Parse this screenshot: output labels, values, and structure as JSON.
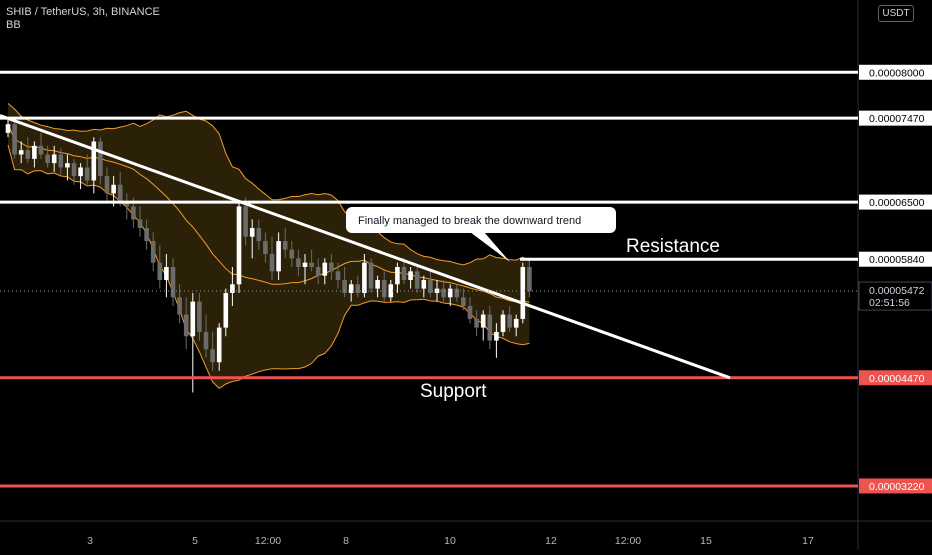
{
  "header": {
    "symbol_line": "SHIB / TetherUS, 3h, BINANCE",
    "indicator": "BB",
    "currency": "USDT"
  },
  "colors": {
    "background": "#000000",
    "up_candle": "#ffffff",
    "down_candle": "#6b6b6b",
    "band_line": "#f59b27",
    "band_fill": "#2a2108",
    "white_line": "#ffffff",
    "red_line": "#ef5350",
    "axis_text": "#b2b5be"
  },
  "chart_data": {
    "type": "candlestick",
    "ylim": [
      2.8e-06,
      8.8e-06
    ],
    "y_ticks": [
      "0.00003000",
      "0.00003500",
      "0.00004000",
      "0.00004500",
      "0.00005000",
      "0.00005500",
      "0.00006000",
      "0.00006500",
      "0.00007000",
      "0.00007500",
      "0.00008000",
      "0.00008500"
    ],
    "x_ticks": [
      "3",
      "5",
      "12:00",
      "8",
      "10",
      "12",
      "12:00",
      "15",
      "17"
    ],
    "price_levels": [
      {
        "value": 8e-06,
        "label": "0.00008000",
        "color": "white"
      },
      {
        "value": 7.47e-06,
        "label": "0.00007470",
        "color": "white"
      },
      {
        "value": 6.5e-06,
        "label": "0.00006500",
        "color": "white"
      },
      {
        "value": 5.84e-06,
        "label": "0.00005840",
        "color": "white"
      },
      {
        "value": 4.47e-06,
        "label": "0.00004470",
        "color": "red"
      },
      {
        "value": 3.22e-06,
        "label": "0.00003220",
        "color": "red"
      }
    ],
    "current_price": {
      "label": "0.00005472",
      "countdown": "02:51:56",
      "value": 5.472e-06
    },
    "annotations": {
      "callout": "Finally managed to break the downward trend",
      "resistance": "Resistance",
      "support": "Support"
    },
    "candles_ohlc": [
      [
        7.3,
        7.45,
        7.25,
        7.4
      ],
      [
        7.4,
        7.48,
        7.0,
        7.05
      ],
      [
        7.05,
        7.2,
        6.95,
        7.1
      ],
      [
        7.1,
        7.25,
        6.95,
        7.0
      ],
      [
        7.0,
        7.2,
        6.9,
        7.15
      ],
      [
        7.15,
        7.3,
        7.0,
        7.05
      ],
      [
        7.05,
        7.15,
        6.9,
        6.95
      ],
      [
        6.95,
        7.15,
        6.85,
        7.05
      ],
      [
        7.05,
        7.12,
        6.8,
        6.9
      ],
      [
        6.9,
        7.05,
        6.75,
        6.95
      ],
      [
        6.95,
        7.0,
        6.7,
        6.8
      ],
      [
        6.8,
        6.95,
        6.65,
        6.9
      ],
      [
        6.9,
        7.05,
        6.7,
        6.75
      ],
      [
        6.75,
        7.25,
        6.6,
        7.2
      ],
      [
        7.2,
        7.25,
        6.7,
        6.8
      ],
      [
        6.8,
        6.9,
        6.5,
        6.6
      ],
      [
        6.6,
        6.8,
        6.45,
        6.7
      ],
      [
        6.7,
        6.85,
        6.45,
        6.5
      ],
      [
        6.5,
        6.6,
        6.3,
        6.45
      ],
      [
        6.45,
        6.55,
        6.2,
        6.3
      ],
      [
        6.3,
        6.45,
        6.1,
        6.2
      ],
      [
        6.2,
        6.3,
        5.95,
        6.05
      ],
      [
        6.05,
        6.15,
        5.7,
        5.8
      ],
      [
        5.8,
        6.0,
        5.5,
        5.6
      ],
      [
        5.6,
        5.9,
        5.4,
        5.75
      ],
      [
        5.75,
        5.85,
        5.3,
        5.4
      ],
      [
        5.4,
        5.55,
        5.1,
        5.2
      ],
      [
        5.2,
        5.4,
        4.8,
        4.95
      ],
      [
        4.95,
        5.45,
        4.3,
        5.35
      ],
      [
        5.35,
        5.45,
        4.9,
        5.0
      ],
      [
        5.0,
        5.2,
        4.7,
        4.8
      ],
      [
        4.8,
        5.0,
        4.55,
        4.65
      ],
      [
        4.65,
        5.1,
        4.55,
        5.05
      ],
      [
        5.05,
        5.5,
        4.95,
        5.45
      ],
      [
        5.45,
        5.75,
        5.3,
        5.55
      ],
      [
        5.55,
        6.5,
        5.45,
        6.45
      ],
      [
        6.45,
        6.55,
        6.0,
        6.1
      ],
      [
        6.1,
        6.3,
        5.85,
        6.2
      ],
      [
        6.2,
        6.3,
        5.95,
        6.05
      ],
      [
        6.05,
        6.15,
        5.8,
        5.9
      ],
      [
        5.9,
        6.1,
        5.6,
        5.7
      ],
      [
        5.7,
        6.15,
        5.6,
        6.05
      ],
      [
        6.05,
        6.2,
        5.85,
        5.95
      ],
      [
        5.95,
        6.05,
        5.75,
        5.85
      ],
      [
        5.85,
        5.95,
        5.65,
        5.75
      ],
      [
        5.75,
        5.9,
        5.55,
        5.8
      ],
      [
        5.8,
        5.95,
        5.7,
        5.75
      ],
      [
        5.75,
        5.85,
        5.55,
        5.65
      ],
      [
        5.65,
        5.85,
        5.55,
        5.8
      ],
      [
        5.8,
        5.9,
        5.6,
        5.7
      ],
      [
        5.7,
        5.8,
        5.5,
        5.6
      ],
      [
        5.6,
        5.75,
        5.4,
        5.45
      ],
      [
        5.45,
        5.6,
        5.35,
        5.55
      ],
      [
        5.55,
        5.65,
        5.4,
        5.45
      ],
      [
        5.45,
        5.9,
        5.4,
        5.8
      ],
      [
        5.8,
        5.85,
        5.45,
        5.5
      ],
      [
        5.5,
        5.65,
        5.4,
        5.6
      ],
      [
        5.6,
        5.7,
        5.35,
        5.4
      ],
      [
        5.4,
        5.6,
        5.35,
        5.55
      ],
      [
        5.55,
        5.8,
        5.45,
        5.75
      ],
      [
        5.75,
        5.85,
        5.55,
        5.6
      ],
      [
        5.6,
        5.75,
        5.5,
        5.7
      ],
      [
        5.7,
        5.75,
        5.45,
        5.5
      ],
      [
        5.5,
        5.65,
        5.4,
        5.6
      ],
      [
        5.6,
        5.7,
        5.4,
        5.45
      ],
      [
        5.45,
        5.6,
        5.35,
        5.5
      ],
      [
        5.5,
        5.6,
        5.35,
        5.4
      ],
      [
        5.4,
        5.55,
        5.3,
        5.5
      ],
      [
        5.5,
        5.55,
        5.35,
        5.4
      ],
      [
        5.4,
        5.5,
        5.25,
        5.3
      ],
      [
        5.3,
        5.4,
        5.1,
        5.15
      ],
      [
        5.15,
        5.25,
        4.95,
        5.05
      ],
      [
        5.05,
        5.25,
        4.9,
        5.2
      ],
      [
        5.2,
        5.3,
        4.8,
        4.9
      ],
      [
        4.9,
        5.1,
        4.7,
        5.0
      ],
      [
        5.0,
        5.25,
        4.95,
        5.2
      ],
      [
        5.2,
        5.3,
        5.0,
        5.05
      ],
      [
        5.05,
        5.2,
        4.95,
        5.15
      ],
      [
        5.15,
        5.8,
        5.1,
        5.75
      ],
      [
        5.75,
        5.85,
        5.4,
        5.47
      ]
    ]
  }
}
